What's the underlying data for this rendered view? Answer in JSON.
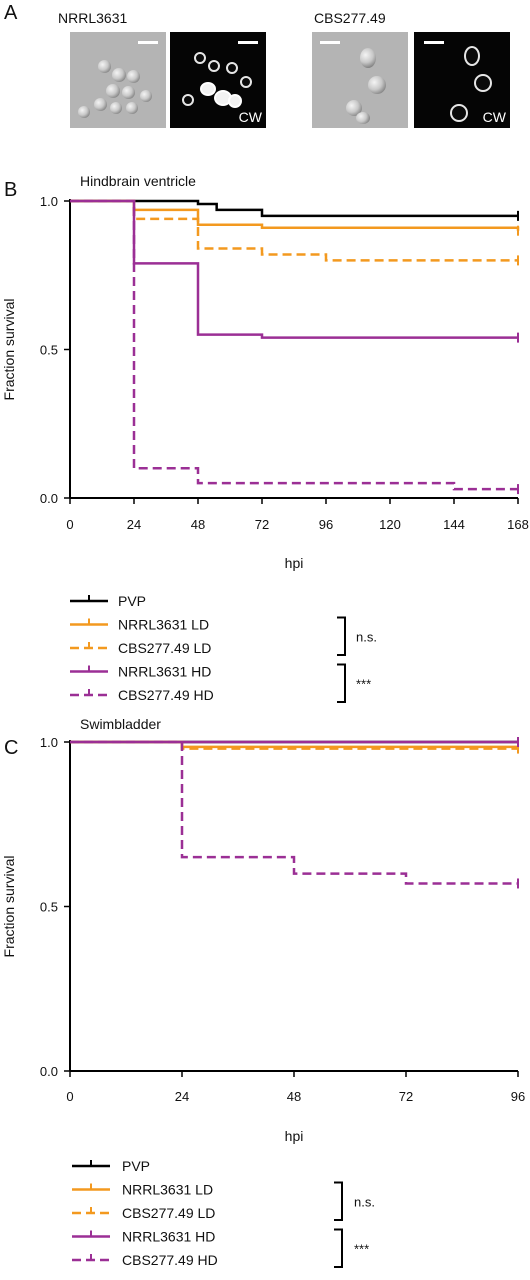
{
  "panel_a": {
    "letter": "A",
    "left_strain": "NRRL3631",
    "right_strain": "CBS277.49",
    "stain_label": "CW"
  },
  "colors": {
    "PVP": "#000000",
    "NRRL3631 LD": "#F3991F",
    "CBS277.49 LD": "#F3991F",
    "NRRL3631 HD": "#9B2F95",
    "CBS277.49 HD": "#9B2F95"
  },
  "chart_data": [
    {
      "letter": "B",
      "type": "line",
      "step": true,
      "title": "Hindbrain ventricle",
      "xlabel": "hpi",
      "ylabel": "Fraction survival",
      "xlim": [
        0,
        168
      ],
      "ylim": [
        0,
        1.0
      ],
      "xticks": [
        0,
        24,
        48,
        72,
        96,
        120,
        144,
        168
      ],
      "yticks": [
        0.0,
        0.5,
        1.0
      ],
      "ytick_labels": [
        "0.0",
        "0.5",
        "1.0"
      ],
      "series": [
        {
          "name": "PVP",
          "dash": false,
          "x": [
            0,
            48,
            55,
            72,
            168
          ],
          "y": [
            1.0,
            0.99,
            0.97,
            0.95,
            0.95
          ]
        },
        {
          "name": "NRRL3631 LD",
          "dash": false,
          "x": [
            0,
            24,
            48,
            72,
            168
          ],
          "y": [
            1.0,
            0.97,
            0.92,
            0.91,
            0.9
          ]
        },
        {
          "name": "CBS277.49 LD",
          "dash": true,
          "x": [
            0,
            24,
            48,
            72,
            96,
            168
          ],
          "y": [
            1.0,
            0.94,
            0.84,
            0.82,
            0.8,
            0.8
          ]
        },
        {
          "name": "NRRL3631 HD",
          "dash": false,
          "x": [
            0,
            24,
            48,
            72,
            168
          ],
          "y": [
            1.0,
            0.79,
            0.55,
            0.54,
            0.54
          ]
        },
        {
          "name": "CBS277.49 HD",
          "dash": true,
          "x": [
            0,
            24,
            48,
            144,
            168
          ],
          "y": [
            1.0,
            0.1,
            0.05,
            0.03,
            0.03
          ]
        }
      ],
      "legend": {
        "entries": [
          "PVP",
          "NRRL3631 LD",
          "CBS277.49 LD",
          "NRRL3631 HD",
          "CBS277.49 HD"
        ],
        "brackets": [
          {
            "from": 1,
            "to": 2,
            "label": "n.s."
          },
          {
            "from": 3,
            "to": 4,
            "label": "***"
          }
        ]
      }
    },
    {
      "letter": "C",
      "type": "line",
      "step": true,
      "title": "Swimbladder",
      "xlabel": "hpi",
      "ylabel": "Fraction survival",
      "xlim": [
        0,
        96
      ],
      "ylim": [
        0,
        1.0
      ],
      "xticks": [
        0,
        24,
        48,
        72,
        96
      ],
      "yticks": [
        0.0,
        0.5,
        1.0
      ],
      "ytick_labels": [
        "0.0",
        "0.5",
        "1.0"
      ],
      "series": [
        {
          "name": "PVP",
          "dash": false,
          "x": [
            0,
            96
          ],
          "y": [
            1.0,
            1.0
          ]
        },
        {
          "name": "NRRL3631 LD",
          "dash": false,
          "x": [
            0,
            24,
            96
          ],
          "y": [
            1.0,
            0.985,
            0.985
          ]
        },
        {
          "name": "CBS277.49 LD",
          "dash": true,
          "x": [
            0,
            24,
            96
          ],
          "y": [
            1.0,
            0.98,
            0.98
          ]
        },
        {
          "name": "NRRL3631 HD",
          "dash": false,
          "x": [
            0,
            96
          ],
          "y": [
            1.0,
            1.0
          ]
        },
        {
          "name": "CBS277.49 HD",
          "dash": true,
          "x": [
            0,
            24,
            48,
            72,
            96
          ],
          "y": [
            1.0,
            0.65,
            0.6,
            0.57,
            0.57
          ]
        }
      ],
      "legend": {
        "entries": [
          "PVP",
          "NRRL3631 LD",
          "CBS277.49 LD",
          "NRRL3631 HD",
          "CBS277.49 HD"
        ],
        "brackets": [
          {
            "from": 1,
            "to": 2,
            "label": "n.s."
          },
          {
            "from": 3,
            "to": 4,
            "label": "***"
          }
        ]
      }
    }
  ]
}
